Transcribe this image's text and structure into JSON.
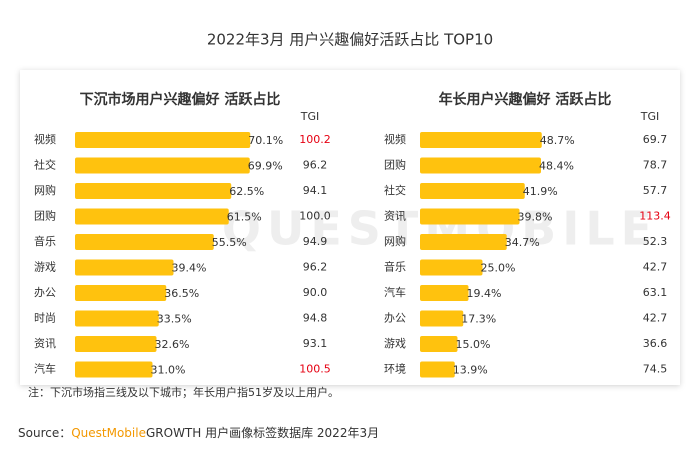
{
  "title": "2022年3月 用户兴趣偏好活跃占比 TOP10",
  "watermark": "QUESTMOBILE",
  "note": "注：下沉市场指三线及以下城市；年长用户指51岁及以上用户。",
  "source_label": "Source：",
  "source_brand": "QuestMobile",
  "source_text": "GROWTH 用户画像标签数据库 2022年3月",
  "chart_data": [
    {
      "type": "bar",
      "title": "下沉市场用户兴趣偏好 活跃占比",
      "color": "#ffc20e",
      "categories": [
        "视频",
        "社交",
        "网购",
        "团购",
        "音乐",
        "游戏",
        "办公",
        "时尚",
        "资讯",
        "汽车"
      ],
      "values": [
        70.1,
        69.9,
        62.5,
        61.5,
        55.5,
        39.4,
        36.5,
        33.5,
        32.6,
        31.0
      ],
      "value_labels": [
        "70.1%",
        "69.9%",
        "62.5%",
        "61.5%",
        "55.5%",
        "39.4%",
        "36.5%",
        "33.5%",
        "32.6%",
        "31.0%"
      ],
      "tgi_header": "TGI",
      "tgi": [
        100.2,
        96.2,
        94.1,
        100.0,
        94.9,
        96.2,
        90.0,
        94.8,
        93.1,
        100.5
      ],
      "tgi_labels": [
        "100.2",
        "96.2",
        "94.1",
        "100.0",
        "94.9",
        "96.2",
        "90.0",
        "94.8",
        "93.1",
        "100.5"
      ],
      "tgi_colors": [
        "#e60012",
        "#333333",
        "#333333",
        "#333333",
        "#333333",
        "#333333",
        "#333333",
        "#333333",
        "#333333",
        "#e60012"
      ]
    },
    {
      "type": "bar",
      "title": "年长用户兴趣偏好 活跃占比",
      "color": "#ffc20e",
      "categories": [
        "视频",
        "团购",
        "社交",
        "资讯",
        "网购",
        "音乐",
        "汽车",
        "办公",
        "游戏",
        "环境"
      ],
      "values": [
        48.7,
        48.4,
        41.9,
        39.8,
        34.7,
        25.0,
        19.4,
        17.3,
        15.0,
        13.9
      ],
      "value_labels": [
        "48.7%",
        "48.4%",
        "41.9%",
        "39.8%",
        "34.7%",
        "25.0%",
        "19.4%",
        "17.3%",
        "15.0%",
        "13.9%"
      ],
      "tgi_header": "TGI",
      "tgi": [
        69.7,
        78.7,
        57.7,
        113.4,
        52.3,
        42.7,
        63.1,
        42.7,
        36.6,
        74.5
      ],
      "tgi_labels": [
        "69.7",
        "78.7",
        "57.7",
        "113.4",
        "52.3",
        "42.7",
        "63.1",
        "42.7",
        "36.6",
        "74.5"
      ],
      "tgi_colors": [
        "#333333",
        "#333333",
        "#333333",
        "#e60012",
        "#333333",
        "#333333",
        "#333333",
        "#333333",
        "#333333",
        "#333333"
      ]
    }
  ]
}
